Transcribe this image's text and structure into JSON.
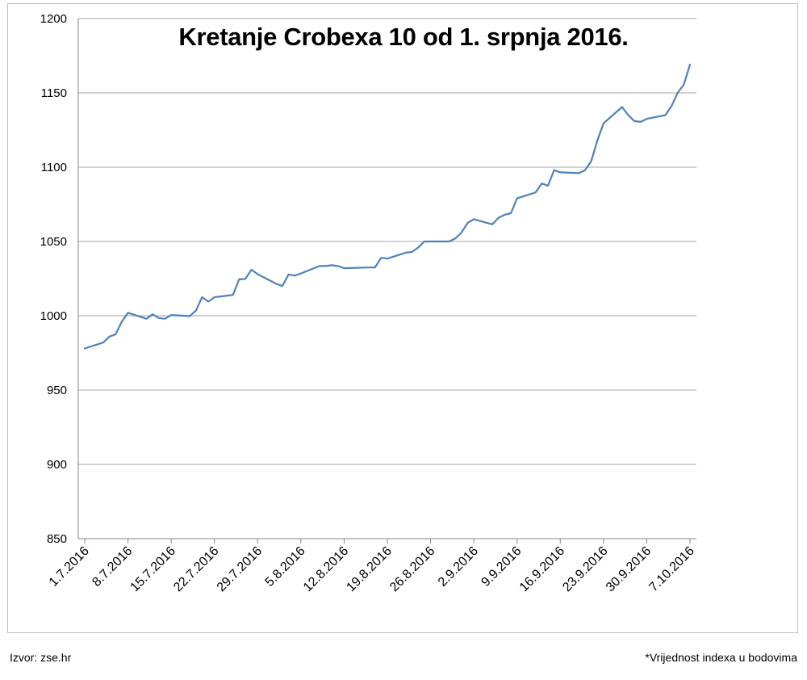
{
  "chart_data": {
    "type": "line",
    "title": "Kretanje Crobexa 10 od 1. srpnja 2016.",
    "xlabel": "",
    "ylabel": "",
    "ylim": [
      850,
      1200
    ],
    "yticks": [
      850,
      900,
      950,
      1000,
      1050,
      1100,
      1150,
      1200
    ],
    "xticks": [
      "1.7.2016",
      "8.7.2016",
      "15.7.2016",
      "22.7.2016",
      "29.7.2016",
      "5.8.2016",
      "12.8.2016",
      "19.8.2016",
      "26.8.2016",
      "2.9.2016",
      "9.9.2016",
      "16.9.2016",
      "23.9.2016",
      "30.9.2016",
      "7.10.2016"
    ],
    "grid": "horizontal",
    "legend": "none",
    "line_color": "#4f81bd",
    "series": [
      {
        "x": [
          "1.7.2016",
          "4.7.2016",
          "5.7.2016",
          "6.7.2016",
          "7.7.2016",
          "8.7.2016",
          "11.7.2016",
          "12.7.2016",
          "13.7.2016",
          "14.7.2016",
          "15.7.2016",
          "18.7.2016",
          "19.7.2016",
          "20.7.2016",
          "21.7.2016",
          "22.7.2016",
          "25.7.2016",
          "26.7.2016",
          "27.7.2016",
          "28.7.2016",
          "29.7.2016",
          "1.8.2016",
          "2.8.2016",
          "3.8.2016",
          "4.8.2016",
          "5.8.2016",
          "8.8.2016",
          "9.8.2016",
          "10.8.2016",
          "11.8.2016",
          "12.8.2016",
          "16.8.2016",
          "17.8.2016",
          "18.8.2016",
          "19.8.2016",
          "22.8.2016",
          "23.8.2016",
          "24.8.2016",
          "25.8.2016",
          "26.8.2016",
          "29.8.2016",
          "30.8.2016",
          "31.8.2016",
          "1.9.2016",
          "2.9.2016",
          "5.9.2016",
          "6.9.2016",
          "7.9.2016",
          "8.9.2016",
          "9.9.2016",
          "12.9.2016",
          "13.9.2016",
          "14.9.2016",
          "15.9.2016",
          "16.9.2016",
          "19.9.2016",
          "20.9.2016",
          "21.9.2016",
          "22.9.2016",
          "23.9.2016",
          "26.9.2016",
          "27.9.2016",
          "28.9.2016",
          "29.9.2016",
          "30.9.2016",
          "3.10.2016",
          "4.10.2016",
          "5.10.2016",
          "6.10.2016",
          "7.10.2016"
        ],
        "values": [
          978,
          982,
          986,
          987.5,
          996,
          1002,
          998,
          1001,
          998.5,
          998,
          1000.5,
          999.8,
          1003.5,
          1012.5,
          1009.5,
          1012.5,
          1014,
          1024.5,
          1024.8,
          1031,
          1028,
          1021.5,
          1020,
          1027.8,
          1027,
          1028.5,
          1033.5,
          1033.5,
          1034,
          1033.5,
          1032,
          1032.5,
          1032.5,
          1039,
          1038.5,
          1042.5,
          1043,
          1046,
          1050,
          1050,
          1050,
          1052,
          1056,
          1062.5,
          1065,
          1061.5,
          1066,
          1068,
          1069,
          1079,
          1083,
          1089,
          1087.5,
          1098,
          1096.5,
          1096,
          1098,
          1104,
          1118,
          1129.5,
          1140.5,
          1135,
          1131,
          1130.5,
          1132.5,
          1135,
          1141,
          1150,
          1155.5,
          1169
        ]
      }
    ]
  },
  "footer": {
    "source": "Izvor: zse.hr",
    "note": "*Vrijednost indexa u bodovima"
  }
}
